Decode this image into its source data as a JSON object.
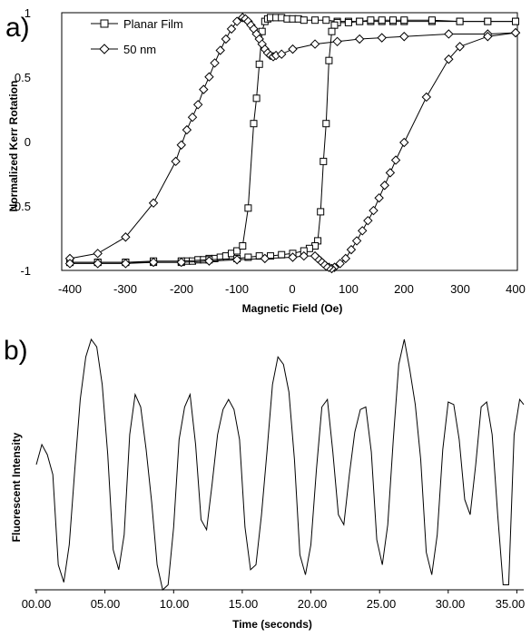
{
  "chart_data": [
    {
      "panel_label": "a)",
      "type": "line",
      "xlabel": "Magnetic Field (Oe)",
      "ylabel": "Normalized Kerr Rotation",
      "xlim": [
        -400,
        400
      ],
      "ylim": [
        -1,
        1
      ],
      "x_ticks": [
        "-400",
        "-300",
        "-200",
        "-100",
        "0",
        "100",
        "200",
        "300",
        "400"
      ],
      "y_ticks": [
        "-1",
        "-0.5",
        "0",
        "0.5",
        "1"
      ],
      "legend_position": "top-left",
      "series": [
        {
          "name": "Planar Film",
          "marker": "square",
          "x": [
            -400,
            -350,
            -300,
            -250,
            -200,
            -190,
            -180,
            -170,
            -160,
            -150,
            -140,
            -130,
            -120,
            -110,
            -100,
            -90,
            -80,
            -70,
            -65,
            -60,
            -55,
            -50,
            -45,
            -40,
            -30,
            -20,
            -10,
            0,
            10,
            20,
            40,
            60,
            80,
            100,
            120,
            140,
            160,
            180,
            200,
            250,
            300,
            350,
            400
          ],
          "y": [
            -0.95,
            -0.95,
            -0.95,
            -0.95,
            -0.95,
            -0.94,
            -0.94,
            -0.93,
            -0.93,
            -0.92,
            -0.92,
            -0.91,
            -0.9,
            -0.88,
            -0.86,
            -0.82,
            -0.52,
            0.15,
            0.35,
            0.62,
            0.88,
            0.96,
            0.98,
            0.99,
            0.99,
            0.99,
            0.98,
            0.98,
            0.98,
            0.97,
            0.97,
            0.97,
            0.96,
            0.96,
            0.96,
            0.96,
            0.96,
            0.96,
            0.96,
            0.96,
            0.96,
            0.96,
            0.96
          ],
          "x_return": [
            400,
            350,
            300,
            250,
            200,
            180,
            160,
            140,
            120,
            100,
            80,
            75,
            70,
            65,
            60,
            55,
            50,
            45,
            40,
            30,
            20,
            0,
            -20,
            -40,
            -60,
            -80,
            -100,
            -150,
            -200,
            -250,
            -300,
            -350,
            -400
          ],
          "y_return": [
            0.96,
            0.96,
            0.96,
            0.97,
            0.97,
            0.97,
            0.97,
            0.97,
            0.96,
            0.95,
            0.95,
            0.93,
            0.88,
            0.65,
            0.15,
            -0.15,
            -0.55,
            -0.78,
            -0.82,
            -0.84,
            -0.86,
            -0.88,
            -0.89,
            -0.9,
            -0.9,
            -0.91,
            -0.92,
            -0.93,
            -0.94,
            -0.94,
            -0.95,
            -0.95,
            -0.95
          ]
        },
        {
          "name": "50 nm",
          "marker": "diamond",
          "x": [
            -400,
            -350,
            -300,
            -250,
            -210,
            -200,
            -190,
            -180,
            -170,
            -160,
            -150,
            -140,
            -130,
            -120,
            -110,
            -100,
            -90,
            -85,
            -80,
            -75,
            -70,
            -65,
            -60,
            -55,
            -50,
            -45,
            -40,
            -35,
            -30,
            -20,
            0,
            40,
            80,
            120,
            160,
            200,
            280,
            350,
            400
          ],
          "y": [
            -0.92,
            -0.88,
            -0.75,
            -0.48,
            -0.15,
            -0.02,
            0.1,
            0.2,
            0.3,
            0.42,
            0.52,
            0.63,
            0.73,
            0.82,
            0.9,
            0.96,
            0.99,
            0.98,
            0.96,
            0.93,
            0.9,
            0.86,
            0.82,
            0.78,
            0.74,
            0.71,
            0.69,
            0.68,
            0.69,
            0.7,
            0.74,
            0.78,
            0.8,
            0.82,
            0.83,
            0.84,
            0.86,
            0.86,
            0.87
          ],
          "x_return": [
            400,
            350,
            300,
            280,
            240,
            200,
            185,
            175,
            165,
            155,
            145,
            135,
            125,
            115,
            105,
            95,
            85,
            75,
            70,
            65,
            60,
            55,
            50,
            45,
            40,
            20,
            0,
            -50,
            -100,
            -150,
            -200,
            -250,
            -300,
            -350,
            -400
          ],
          "y_return": [
            0.87,
            0.84,
            0.76,
            0.66,
            0.36,
            0.0,
            -0.14,
            -0.24,
            -0.34,
            -0.44,
            -0.54,
            -0.62,
            -0.7,
            -0.78,
            -0.85,
            -0.92,
            -0.96,
            -0.99,
            -1.0,
            -0.99,
            -0.98,
            -0.96,
            -0.94,
            -0.92,
            -0.9,
            -0.9,
            -0.91,
            -0.92,
            -0.93,
            -0.94,
            -0.95,
            -0.95,
            -0.96,
            -0.96,
            -0.96
          ]
        }
      ]
    },
    {
      "panel_label": "b)",
      "type": "line",
      "xlabel": "Time (seconds)",
      "ylabel": "Fluorescent Intensity",
      "xlim": [
        0,
        35.5
      ],
      "ylim": [
        0,
        1
      ],
      "x_ticks": [
        "00.00",
        "05.00",
        "10.00",
        "15.00",
        "20.00",
        "25.00",
        "30.00",
        "35.00"
      ],
      "series": [
        {
          "x": [
            0.0,
            0.4,
            0.8,
            1.2,
            1.6,
            2.0,
            2.4,
            2.8,
            3.2,
            3.6,
            4.0,
            4.4,
            4.8,
            5.2,
            5.6,
            6.0,
            6.4,
            6.8,
            7.2,
            7.6,
            8.0,
            8.4,
            8.8,
            9.2,
            9.6,
            10.0,
            10.4,
            10.8,
            11.2,
            11.6,
            12.0,
            12.4,
            12.8,
            13.2,
            13.6,
            14.0,
            14.4,
            14.8,
            15.2,
            15.6,
            16.0,
            16.4,
            16.8,
            17.2,
            17.6,
            18.0,
            18.4,
            18.8,
            19.2,
            19.6,
            20.0,
            20.4,
            20.8,
            21.2,
            21.6,
            22.0,
            22.4,
            22.8,
            23.2,
            23.6,
            24.0,
            24.4,
            24.8,
            25.2,
            25.6,
            26.0,
            26.4,
            26.8,
            27.2,
            27.6,
            28.0,
            28.4,
            28.8,
            29.2,
            29.6,
            30.0,
            30.4,
            30.8,
            31.2,
            31.6,
            32.0,
            32.4,
            32.8,
            33.2,
            33.6,
            34.0,
            34.4,
            34.8,
            35.2,
            35.5
          ],
          "y": [
            0.5,
            0.58,
            0.54,
            0.46,
            0.1,
            0.03,
            0.18,
            0.48,
            0.76,
            0.93,
            1.0,
            0.97,
            0.82,
            0.54,
            0.16,
            0.08,
            0.22,
            0.62,
            0.78,
            0.73,
            0.56,
            0.35,
            0.1,
            0.0,
            0.02,
            0.25,
            0.6,
            0.73,
            0.78,
            0.58,
            0.28,
            0.24,
            0.42,
            0.62,
            0.72,
            0.76,
            0.72,
            0.6,
            0.25,
            0.08,
            0.1,
            0.3,
            0.55,
            0.82,
            0.93,
            0.9,
            0.79,
            0.52,
            0.14,
            0.06,
            0.18,
            0.48,
            0.73,
            0.76,
            0.55,
            0.3,
            0.26,
            0.46,
            0.63,
            0.72,
            0.73,
            0.55,
            0.2,
            0.1,
            0.26,
            0.6,
            0.9,
            1.0,
            0.88,
            0.74,
            0.52,
            0.15,
            0.06,
            0.22,
            0.56,
            0.75,
            0.74,
            0.6,
            0.36,
            0.3,
            0.5,
            0.73,
            0.75,
            0.62,
            0.3,
            0.02,
            0.02,
            0.62,
            0.76,
            0.74
          ]
        }
      ]
    }
  ]
}
